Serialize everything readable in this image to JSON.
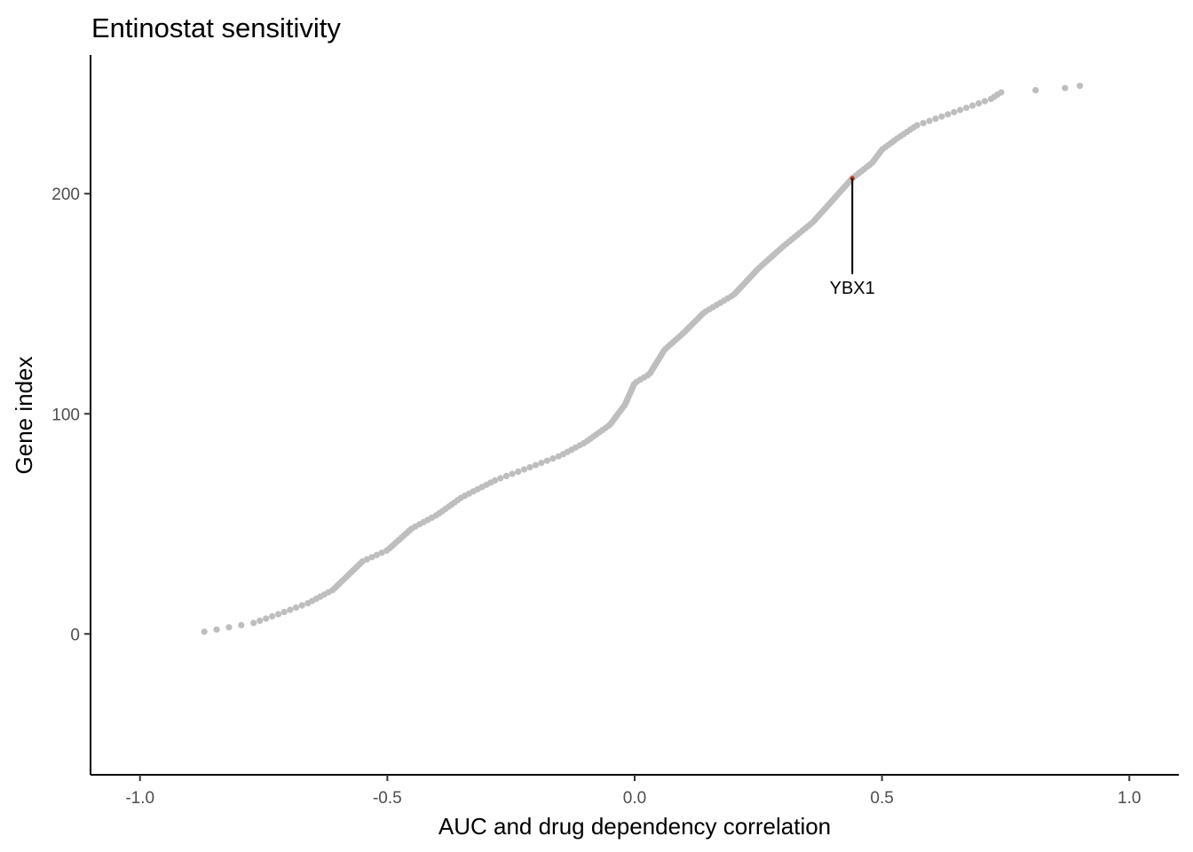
{
  "chart_data": {
    "type": "scatter",
    "title": "Entinostat sensitivity",
    "xlabel": "AUC and drug dependency correlation",
    "ylabel": "Gene index",
    "xlim": [
      -1.1,
      1.1
    ],
    "ylim": [
      -64,
      263
    ],
    "x_ticks": [
      -1.0,
      -0.5,
      0.0,
      0.5,
      1.0
    ],
    "x_tick_labels": [
      "-1.0",
      "-0.5",
      "0.0",
      "0.5",
      "1.0"
    ],
    "y_ticks": [
      0,
      100,
      200
    ],
    "y_tick_labels": [
      "0",
      "100",
      "200"
    ],
    "grid": false,
    "point_color": "#bebebe",
    "highlight_color": "#cc3311",
    "curve_knots": [
      [
        -0.87,
        1
      ],
      [
        -0.82,
        3
      ],
      [
        -0.77,
        5
      ],
      [
        -0.72,
        9
      ],
      [
        -0.66,
        14
      ],
      [
        -0.61,
        20
      ],
      [
        -0.55,
        33
      ],
      [
        -0.5,
        38
      ],
      [
        -0.45,
        48
      ],
      [
        -0.4,
        54
      ],
      [
        -0.35,
        62
      ],
      [
        -0.28,
        70
      ],
      [
        -0.22,
        75
      ],
      [
        -0.15,
        81
      ],
      [
        -0.1,
        87
      ],
      [
        -0.05,
        95
      ],
      [
        -0.02,
        104
      ],
      [
        0.0,
        114
      ],
      [
        0.03,
        118
      ],
      [
        0.06,
        129
      ],
      [
        0.1,
        137
      ],
      [
        0.14,
        146
      ],
      [
        0.2,
        154
      ],
      [
        0.25,
        166
      ],
      [
        0.3,
        176
      ],
      [
        0.36,
        187
      ],
      [
        0.4,
        197
      ],
      [
        0.44,
        207
      ],
      [
        0.48,
        214
      ],
      [
        0.5,
        220
      ],
      [
        0.53,
        225
      ],
      [
        0.57,
        231
      ],
      [
        0.62,
        235
      ],
      [
        0.67,
        239
      ],
      [
        0.72,
        243
      ],
      [
        0.74,
        246
      ],
      [
        0.81,
        247
      ],
      [
        0.87,
        248
      ],
      [
        0.9,
        249
      ]
    ],
    "n_points": 250,
    "highlight": {
      "label": "YBX1",
      "x": 0.44,
      "y": 207,
      "label_y": 157
    }
  }
}
